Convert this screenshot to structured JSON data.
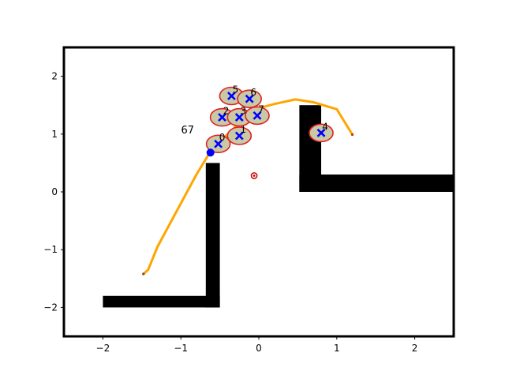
{
  "chart_data": {
    "type": "scatter",
    "title": "",
    "xlabel": "",
    "ylabel": "",
    "xlim": [
      -2.5,
      2.5
    ],
    "ylim": [
      -2.5,
      2.5
    ],
    "xticks": [
      -2,
      -1,
      0,
      1,
      2
    ],
    "yticks": [
      -2,
      -1,
      0,
      1,
      2
    ],
    "xtick_labels": [
      "−2",
      "−1",
      "0",
      "1",
      "2"
    ],
    "ytick_labels": [
      "−2",
      "−1",
      "0",
      "1",
      "2"
    ],
    "grid": false,
    "legend": "none",
    "step_label": "67",
    "colors": {
      "path": "#ffa500",
      "obstacle": "#000000",
      "agent_marker": "#0000ff",
      "agent_ellipse_edge": "#dd2222",
      "agent_ellipse_fill": "#c9c9a6",
      "goal": "#cc0000"
    },
    "obstacles": [
      {
        "name": "obstacle-bottom-bar",
        "x": [
          -2.0,
          -0.5
        ],
        "y": [
          -2.0,
          -1.8
        ]
      },
      {
        "name": "obstacle-left-pillar",
        "x": [
          -0.68,
          -0.5
        ],
        "y": [
          -2.0,
          0.5
        ]
      },
      {
        "name": "obstacle-right-pillar",
        "x": [
          0.52,
          0.8
        ],
        "y": [
          0.0,
          1.5
        ]
      },
      {
        "name": "obstacle-right-bar",
        "x": [
          0.52,
          2.5
        ],
        "y": [
          0.0,
          0.3
        ]
      }
    ],
    "path": {
      "x": [
        -1.48,
        -1.42,
        -1.3,
        -1.1,
        -0.8,
        -0.62,
        -0.4,
        -0.2,
        0.0,
        0.2,
        0.47,
        0.7,
        1.0,
        1.2
      ],
      "y": [
        -1.42,
        -1.35,
        -0.95,
        -0.45,
        0.3,
        0.7,
        1.0,
        1.25,
        1.45,
        1.52,
        1.6,
        1.55,
        1.43,
        0.99
      ]
    },
    "path_start": {
      "x": -1.48,
      "y": -1.42
    },
    "path_end": {
      "x": 1.2,
      "y": 0.99
    },
    "robot": {
      "x": -0.62,
      "y": 0.68
    },
    "goal": {
      "x": -0.06,
      "y": 0.28
    },
    "agents": [
      {
        "label": "0",
        "x": -0.52,
        "y": 0.83
      },
      {
        "label": "1",
        "x": -0.25,
        "y": 0.97
      },
      {
        "label": "2",
        "x": -0.47,
        "y": 1.29
      },
      {
        "label": "3",
        "x": -0.25,
        "y": 1.29
      },
      {
        "label": "4",
        "x": 0.8,
        "y": 1.02
      },
      {
        "label": "5",
        "x": -0.35,
        "y": 1.66
      },
      {
        "label": "6",
        "x": -0.12,
        "y": 1.61
      },
      {
        "label": "7",
        "x": -0.02,
        "y": 1.32
      }
    ]
  }
}
